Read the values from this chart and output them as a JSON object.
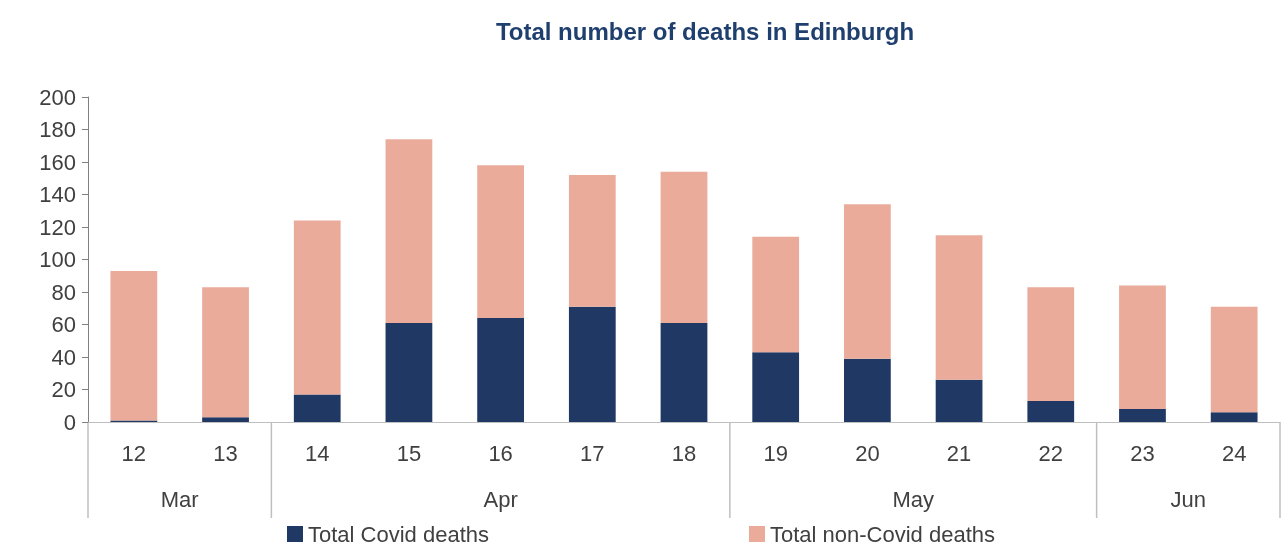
{
  "chart_data": {
    "type": "bar",
    "title": "Total number of deaths in Edinburgh",
    "categories": [
      "12",
      "13",
      "14",
      "15",
      "16",
      "17",
      "18",
      "19",
      "20",
      "21",
      "22",
      "23",
      "24"
    ],
    "stacked": true,
    "series": [
      {
        "name": "Total Covid deaths",
        "color": "#203864",
        "values": [
          1,
          3,
          17,
          61,
          64,
          71,
          61,
          43,
          39,
          26,
          13,
          8,
          6
        ]
      },
      {
        "name": "Total non-Covid deaths",
        "color": "#eaab9b",
        "values": [
          92,
          80,
          107,
          113,
          94,
          81,
          93,
          71,
          95,
          89,
          70,
          76,
          65
        ]
      }
    ],
    "annotations": [
      "Mar",
      "Apr",
      "May",
      "Jun"
    ],
    "ylim": [
      0,
      200
    ],
    "yticks": [
      0,
      20,
      40,
      60,
      80,
      100,
      120,
      140,
      160,
      180,
      200
    ],
    "grid": false,
    "legend": "bottom"
  }
}
